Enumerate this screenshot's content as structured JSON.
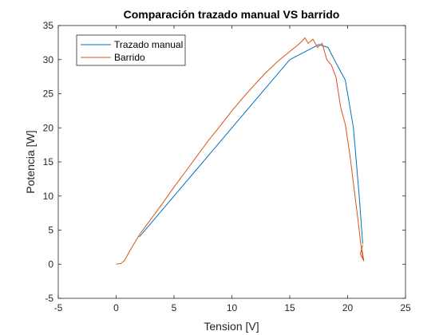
{
  "chart_data": {
    "type": "line",
    "title": "Comparación trazado manual VS barrido",
    "xlabel": "Tension [V]",
    "ylabel": "Potencia [W]",
    "xlim": [
      -5,
      25
    ],
    "ylim": [
      -5,
      35
    ],
    "xticks": [
      "-5",
      "0",
      "5",
      "10",
      "15",
      "20",
      "25"
    ],
    "yticks": [
      "-5",
      "0",
      "5",
      "10",
      "15",
      "20",
      "25",
      "30",
      "35"
    ],
    "grid": false,
    "legend_position": "top-left",
    "series": [
      {
        "name": "Trazado manual",
        "color": "#0072BD",
        "x": [
          2.0,
          15.0,
          17.5,
          18.3,
          19.0,
          19.8,
          20.5,
          21.0,
          21.3
        ],
        "y": [
          4.0,
          30.0,
          32.2,
          31.8,
          29.5,
          27.0,
          20.0,
          10.0,
          3.0
        ]
      },
      {
        "name": "Barrido",
        "color": "#D95319",
        "x": [
          0.0,
          0.4,
          0.7,
          1.2,
          2.0,
          3.0,
          4.0,
          5.0,
          6.0,
          7.0,
          8.0,
          9.0,
          10.0,
          11.0,
          12.0,
          13.0,
          14.0,
          15.0,
          15.6,
          16.0,
          16.3,
          16.6,
          17.0,
          17.4,
          17.8,
          18.2,
          18.6,
          19.0,
          19.4,
          19.8,
          20.2,
          20.6,
          20.9,
          21.1,
          21.3,
          21.2,
          21.4,
          21.1,
          21.3
        ],
        "y": [
          0.0,
          0.1,
          0.5,
          2.0,
          4.3,
          6.6,
          8.9,
          11.3,
          13.6,
          15.9,
          18.2,
          20.3,
          22.5,
          24.5,
          26.4,
          28.2,
          29.8,
          31.2,
          32.0,
          32.6,
          33.2,
          32.4,
          33.0,
          31.8,
          32.4,
          30.0,
          29.2,
          27.4,
          23.0,
          20.5,
          16.0,
          10.5,
          6.5,
          3.5,
          1.0,
          2.5,
          0.5,
          1.5,
          2.8
        ]
      }
    ]
  }
}
